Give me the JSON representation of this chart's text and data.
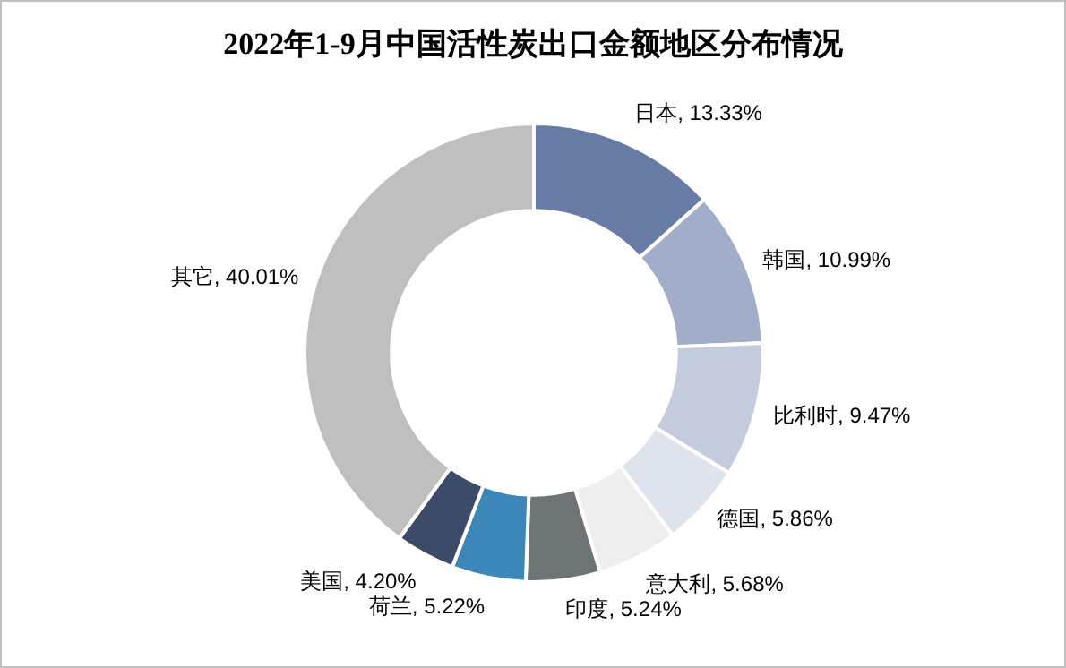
{
  "chart_data": {
    "type": "donut",
    "title": "2022年1-9月中国活性炭出口金额地区分布情况",
    "categories": [
      "日本",
      "韩国",
      "比利时",
      "德国",
      "意大利",
      "印度",
      "荷兰",
      "美国",
      "其它"
    ],
    "values": [
      13.33,
      10.99,
      9.47,
      5.86,
      5.68,
      5.24,
      5.22,
      4.2,
      40.01
    ],
    "value_labels": [
      "13.33%",
      "10.99%",
      "9.47%",
      "5.86%",
      "5.68%",
      "5.24%",
      "5.22%",
      "4.20%",
      "40.01%"
    ],
    "colors": [
      "#687ba4",
      "#a2aec9",
      "#c4cbdc",
      "#dfe3ec",
      "#eeeeee",
      "#6e7474",
      "#3d86b8",
      "#3d4b69",
      "#bfbfbf"
    ],
    "legend": false
  }
}
